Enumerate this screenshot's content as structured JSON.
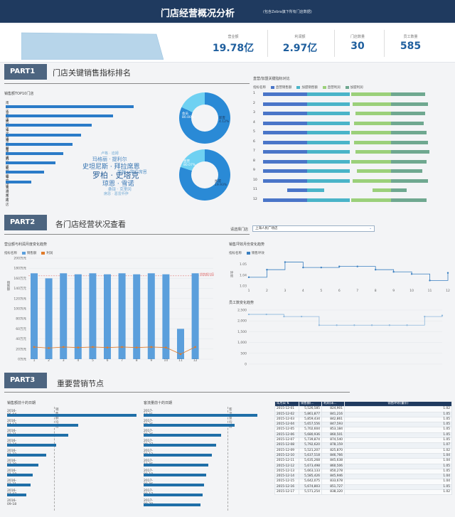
{
  "header": {
    "title": "门店经营概况分析",
    "subtitle": "(包含Zebra旗下所有门店数据)"
  },
  "kpis": [
    {
      "label": "营业额",
      "value": "19.78亿"
    },
    {
      "label": "利润额",
      "value": "2.97亿"
    },
    {
      "label": "门店数量",
      "value": "30"
    },
    {
      "label": "员工数量",
      "value": "585"
    }
  ],
  "part1": {
    "tag": "PART1",
    "title": "门店关键销售指标排名",
    "top10_title": "销售额TOP10门店",
    "stores": [
      {
        "name": "南京江宁店",
        "value": 100
      },
      {
        "name": "合肥中环店",
        "value": 84
      },
      {
        "name": "武汉光谷店",
        "value": 67
      },
      {
        "name": "上海浦东新店",
        "value": 59
      },
      {
        "name": "常州新北店",
        "value": 52
      },
      {
        "name": "常州武进店",
        "value": 45
      },
      {
        "name": "苏州新区店",
        "value": 39
      },
      {
        "name": "北京朝阳店",
        "value": 30
      },
      {
        "name": "上海江湾新店",
        "value": 20
      },
      {
        "name": "青岛市南店",
        "value": 0
      }
    ],
    "donut1": {
      "a_label": "会员",
      "a_pct": "80.00%",
      "b_label": "新客",
      "b_pct": "4.12%"
    },
    "donut2": {
      "a_label": "直营",
      "a_pct": "80.07%",
      "b_label": "加盟",
      "b_pct": "19.93%"
    },
    "wordcloud": [
      "卢格 · 迪姆",
      "玛格丽 · 提利尔",
      "史坦尼斯 · 拜拉席恩",
      "劳勃 · 拜拉席恩",
      "罗柏 · 史塔克",
      "琼恩 · 雪诺",
      "桑铎 · 克里冈",
      "席恩 · 葛雷乔伊"
    ],
    "right_title": "直营/加盟关键指标对比",
    "right_legend_title": "指标名称",
    "right_legend": [
      "直营销售额",
      "加盟销售额",
      "直营利润",
      "加盟利润"
    ],
    "right_rows": [
      {
        "idx": "1",
        "a": 62,
        "b": 60,
        "c": 56,
        "d": 48
      },
      {
        "idx": "2",
        "a": 62,
        "b": 60,
        "c": 54,
        "d": 52
      },
      {
        "idx": "3",
        "a": 62,
        "b": 60,
        "c": 50,
        "d": 48
      },
      {
        "idx": "4",
        "a": 62,
        "b": 60,
        "c": 52,
        "d": 46
      },
      {
        "idx": "5",
        "a": 62,
        "b": 60,
        "c": 56,
        "d": 50
      },
      {
        "idx": "6",
        "a": 62,
        "b": 60,
        "c": 52,
        "d": 52
      },
      {
        "idx": "7",
        "a": 62,
        "b": 60,
        "c": 50,
        "d": 54
      },
      {
        "idx": "8",
        "a": 62,
        "b": 60,
        "c": 56,
        "d": 50
      },
      {
        "idx": "9",
        "a": 62,
        "b": 60,
        "c": 48,
        "d": 44
      },
      {
        "idx": "10",
        "a": 62,
        "b": 60,
        "c": 54,
        "d": 52
      },
      {
        "idx": "11",
        "a": 28,
        "b": 24,
        "c": 26,
        "d": 22
      },
      {
        "idx": "12",
        "a": 62,
        "b": 60,
        "c": 56,
        "d": 50
      }
    ]
  },
  "part2": {
    "tag": "PART2",
    "title": "各门店经营状况查看",
    "select_label": "请选择门店",
    "select_value": "上海人民广场店",
    "left_title": "营业额与利润月度变化趋势",
    "left_legend_title": "指标名称",
    "left_legend": [
      "销售额",
      "利润"
    ],
    "left_ylabel": "销售额",
    "left_yticks": [
      "200万元",
      "180万元",
      "160万元",
      "140万元",
      "120万元",
      "100万元",
      "80万元",
      "60万元",
      "40万元",
      "20万元",
      "0万元"
    ],
    "left_ref_label": "销售额均值",
    "months": [
      "1",
      "2",
      "3",
      "4",
      "5",
      "6",
      "7",
      "8",
      "9",
      "10",
      "11",
      "12"
    ],
    "sales": [
      170,
      160,
      170,
      168,
      170,
      168,
      170,
      168,
      170,
      168,
      60,
      170
    ],
    "profit": [
      24,
      22,
      24,
      23,
      24,
      23,
      24,
      23,
      24,
      23,
      10,
      24
    ],
    "ppm_title": "销售坪效月份变化趋势",
    "ppm_legend_title": "指标名称",
    "ppm_legend": [
      "销售坪效"
    ],
    "ppm_ylabel": "坪效",
    "ppm_yticks": [
      "1.05",
      "1.04",
      "1.03"
    ],
    "ppm": [
      1.038,
      1.045,
      1.052,
      1.047,
      1.047,
      1.048,
      1.048,
      1.045,
      1.043,
      1.041,
      1.035,
      1.042
    ],
    "staff_title": " 员工数变化趋势",
    "staff_yticks": [
      "2,500",
      "2,000",
      "1,500",
      "1,000",
      "500",
      "0"
    ],
    "staff": [
      2300,
      2300,
      2200,
      2200,
      1800,
      1800,
      1800,
      1800,
      1800,
      1800,
      2200,
      2250
    ]
  },
  "part3": {
    "tag": "PART3",
    "title": "重要营销节点",
    "left_title": "销售额前十的日期",
    "left_ref_label": "销售额均值",
    "left_rows": [
      {
        "date": "2016-06-04",
        "value": 100
      },
      {
        "date": "2016-04-17",
        "value": 55
      },
      {
        "date": "2016-10-21",
        "value": 47
      },
      {
        "date": "2016-03-24",
        "value": 38
      },
      {
        "date": "2016-01-22",
        "value": 30
      },
      {
        "date": "2016-07-29",
        "value": 24
      },
      {
        "date": "2016-01-18",
        "value": 20
      },
      {
        "date": "2016-02-21",
        "value": 18
      },
      {
        "date": "2016-07-07",
        "value": 15
      },
      {
        "date": "2016-09-18",
        "value": 0
      }
    ],
    "mid_title": "客流量前十的日期",
    "mid_ref_label": "客流量均值",
    "mid_rows": [
      {
        "date": "2017-10-01",
        "value": 100
      },
      {
        "date": "2017-09-25",
        "value": 80
      },
      {
        "date": "2017-09-26",
        "value": 68
      },
      {
        "date": "2017-09-27",
        "value": 64
      },
      {
        "date": "2017-09-13",
        "value": 60
      },
      {
        "date": "2017-10-05",
        "value": 57
      },
      {
        "date": "2017-09-18",
        "value": 55
      },
      {
        "date": "2017-09-06",
        "value": 53
      },
      {
        "date": "2017-09-17",
        "value": 52
      },
      {
        "date": "2017-09-28",
        "value": 50
      }
    ],
    "table_headers": [
      "年月日",
      "销售额(...",
      "利润(未...",
      "销售坪效(量价)"
    ],
    "table_rows": [
      [
        "2015-12-01",
        "5,526,585",
        "824,901",
        "1.02"
      ],
      [
        "2015-12-02",
        "5,861,877",
        "841,216",
        "1.05"
      ],
      [
        "2015-12-03",
        "5,859,434",
        "842,861",
        "1.05"
      ],
      [
        "2015-12-04",
        "5,657,556",
        "847,593",
        "1.05"
      ],
      [
        "2015-12-05",
        "5,702,604",
        "853,184",
        "1.05"
      ],
      [
        "2015-12-06",
        "5,680,936",
        "860,501",
        "1.05"
      ],
      [
        "2015-12-07",
        "5,739,874",
        "874,540",
        "1.05"
      ],
      [
        "2015-12-08",
        "5,792,620",
        "878,159",
        "1.07"
      ],
      [
        "2015-12-09",
        "5,521,207",
        "825,870",
        "1.02"
      ],
      [
        "2015-12-10",
        "5,637,518",
        "846,766",
        "1.04"
      ],
      [
        "2015-12-11",
        "5,635,268",
        "845,638",
        "1.04"
      ],
      [
        "2015-12-12",
        "5,673,498",
        "860,506",
        "1.05"
      ],
      [
        "2015-12-13",
        "5,663,133",
        "850,278",
        "1.05"
      ],
      [
        "2015-12-14",
        "5,585,426",
        "845,946",
        "1.04"
      ],
      [
        "2015-12-15",
        "5,642,075",
        "833,678",
        "1.04"
      ],
      [
        "2015-12-16",
        "5,674,803",
        "851,727",
        "1.05"
      ],
      [
        "2015-12-17",
        "5,571,254",
        "838,320",
        "1.02"
      ]
    ]
  },
  "colors": {
    "header": "#1f3a5f",
    "part_tab": "#4d6580",
    "bar_blue": "#2a7bc8",
    "column_blue": "#5b9fdc",
    "line_orange": "#e07b2a"
  }
}
